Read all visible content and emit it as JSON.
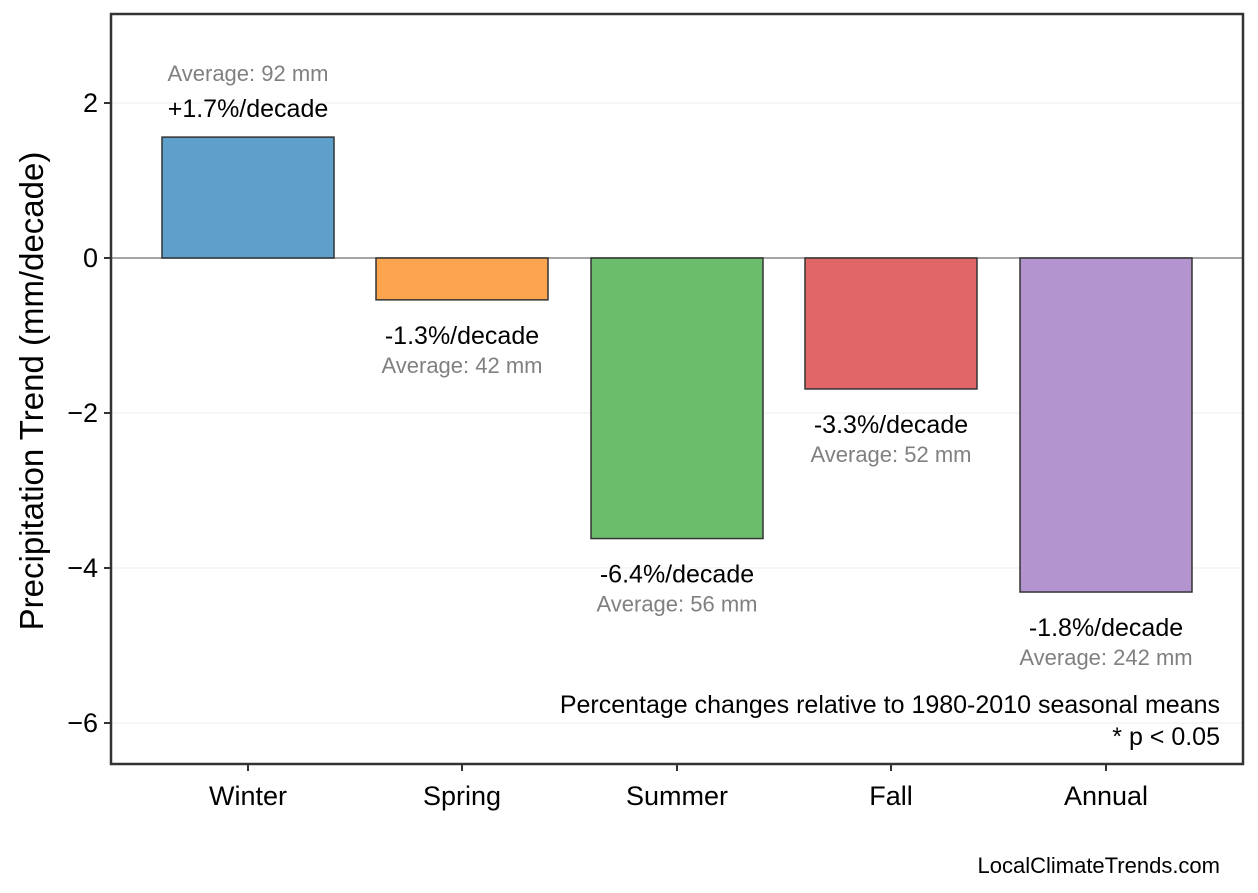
{
  "chart_data": {
    "type": "bar",
    "ylabel": "Precipitation Trend (mm/decade)",
    "xlabel": "",
    "ylim": [
      -6.55,
      3.2
    ],
    "yticks": [
      2,
      0,
      -2,
      -4,
      -6
    ],
    "ytick_labels": [
      "2",
      "0",
      "−2",
      "−4",
      "−6"
    ],
    "grid": "horizontal, faint",
    "categories": [
      "Winter",
      "Spring",
      "Summer",
      "Fall",
      "Annual"
    ],
    "values": [
      1.56,
      -0.54,
      -3.62,
      -1.69,
      -4.31
    ],
    "colors": [
      "#5f9fcc",
      "#fda44f",
      "#6bbd6b",
      "#e06668",
      "#b394cf"
    ],
    "pct_labels": [
      "+1.7%/decade",
      "-1.3%/decade",
      "-6.4%/decade",
      "-3.3%/decade",
      "-1.8%/decade"
    ],
    "avg_labels": [
      "Average: 92 mm",
      "Average: 42 mm",
      "Average: 56 mm",
      "Average: 52 mm",
      "Average: 242 mm"
    ],
    "annotations": [
      "Percentage changes relative to 1980-2010 seasonal means",
      "* p < 0.05"
    ],
    "credit": "LocalClimateTrends.com"
  }
}
